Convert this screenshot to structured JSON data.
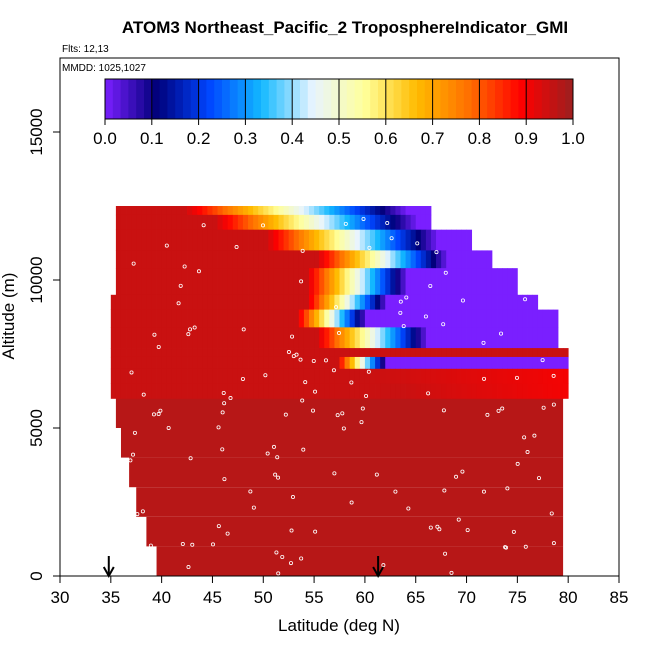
{
  "chart_data": {
    "type": "heatmap",
    "title": "ATOM3 Northeast_Pacific_2 TroposphereIndicator_GMI",
    "flights_label": "Flts: 12,13",
    "mmdd_label": "MMDD: 1025,1027",
    "xlabel": "Latitude (deg N)",
    "ylabel": "Altitude (m)",
    "xlim": [
      30,
      85
    ],
    "ylim": [
      0,
      17500
    ],
    "xticks": [
      "30",
      "35",
      "40",
      "45",
      "50",
      "55",
      "60",
      "65",
      "70",
      "75",
      "80",
      "85"
    ],
    "yticks": [
      "0",
      "5000",
      "10000",
      "15000"
    ],
    "colorbar": {
      "ticks": [
        "0.0",
        "0.1",
        "0.2",
        "0.3",
        "0.4",
        "0.5",
        "0.6",
        "0.7",
        "0.8",
        "0.9",
        "1.0"
      ],
      "range": [
        0,
        1
      ],
      "colors": [
        "#7a1fff",
        "#00007a",
        "#0045ff",
        "#12b8ff",
        "#e8f4ff",
        "#ffff99",
        "#ffbb00",
        "#ff6f00",
        "#ff0000",
        "#9c1f1f"
      ]
    },
    "arrows_latitude": [
      34.8,
      61.3
    ],
    "envelope": {
      "altitude_top": [
        12500,
        12500,
        9500,
        9500,
        7400,
        7400
      ],
      "latitude_top": [
        35.3,
        66.5,
        79.0,
        79.0,
        80.0,
        80.0
      ],
      "latitude_bottom_left": [
        [
          0,
          39.5
        ],
        [
          1000,
          38.5
        ],
        [
          2000,
          37.5
        ],
        [
          3000,
          36.8
        ],
        [
          4000,
          36.0
        ],
        [
          5000,
          35.5
        ],
        [
          6000,
          35.0
        ],
        [
          9500,
          35.0
        ]
      ]
    },
    "layers": [
      {
        "alt_min": 12200,
        "alt_max": 12500,
        "lat_start": 35.5,
        "lat_end": 66.5,
        "values_from": 0.95,
        "values_to": 0.0,
        "transition_lat": [
          42,
          64
        ]
      },
      {
        "alt_min": 11700,
        "alt_max": 12200,
        "lat_start": 35.5,
        "lat_end": 66.5,
        "values_from": 0.95,
        "values_to": 0.0,
        "transition_lat": [
          45,
          65
        ]
      },
      {
        "alt_min": 11000,
        "alt_max": 11700,
        "lat_start": 35.5,
        "lat_end": 70.5,
        "values_from": 0.95,
        "values_to": 0.0,
        "transition_lat": [
          50,
          67
        ]
      },
      {
        "alt_min": 10400,
        "alt_max": 11000,
        "lat_start": 35.5,
        "lat_end": 72.5,
        "values_from": 0.95,
        "values_to": 0.0,
        "transition_lat": [
          55,
          68
        ]
      },
      {
        "alt_min": 9500,
        "alt_max": 10400,
        "lat_start": 35.5,
        "lat_end": 75.0,
        "values_from": 0.95,
        "values_to": 0.0,
        "transition_lat": [
          54,
          64
        ]
      },
      {
        "alt_min": 9000,
        "alt_max": 9500,
        "lat_start": 35.0,
        "lat_end": 77.0,
        "values_from": 0.95,
        "values_to": 0.0,
        "transition_lat": [
          54,
          62
        ]
      },
      {
        "alt_min": 8400,
        "alt_max": 9000,
        "lat_start": 35.0,
        "lat_end": 79.0,
        "values_from": 0.95,
        "values_to": 0.0,
        "transition_lat": [
          53,
          60
        ]
      },
      {
        "alt_min": 7700,
        "alt_max": 8400,
        "lat_start": 35.0,
        "lat_end": 79.0,
        "values_from": 0.95,
        "values_to": 0.0,
        "transition_lat": [
          55,
          66
        ]
      },
      {
        "alt_min": 7400,
        "alt_max": 7700,
        "lat_start": 35.0,
        "lat_end": 80.0,
        "values_from": 0.95,
        "values_to": 0.95,
        "transition_lat": [
          80,
          80
        ]
      },
      {
        "alt_min": 7000,
        "alt_max": 7400,
        "lat_start": 35.0,
        "lat_end": 80.0,
        "values_from": 0.95,
        "values_to": 0.0,
        "transition_lat": [
          57,
          62
        ]
      },
      {
        "alt_min": 6500,
        "alt_max": 7000,
        "lat_start": 35.0,
        "lat_end": 80.0,
        "values_from": 0.95,
        "values_to": 0.9,
        "transition_lat": [
          60,
          80
        ]
      },
      {
        "alt_min": 6000,
        "alt_max": 6500,
        "lat_start": 35.0,
        "lat_end": 80.0,
        "values_from": 0.95,
        "values_to": 0.9,
        "transition_lat": [
          63,
          80
        ]
      }
    ]
  }
}
